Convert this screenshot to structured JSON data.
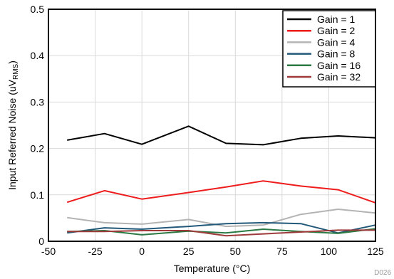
{
  "chart_data": {
    "type": "line",
    "xlabel": "Temperature (°C)",
    "ylabel_main": "Input Referred Noise (uV",
    "ylabel_sub": "RMS",
    "ylabel_close": ")",
    "xlim": [
      -50,
      125
    ],
    "ylim": [
      0,
      0.5
    ],
    "x_ticks": [
      -50,
      -25,
      0,
      25,
      50,
      75,
      100,
      125
    ],
    "y_ticks": [
      0,
      0.1,
      0.2,
      0.3,
      0.4,
      0.5
    ],
    "x_tick_labels": [
      "-50",
      "-25",
      "0",
      "25",
      "50",
      "75",
      "100",
      "125"
    ],
    "y_tick_labels": [
      "0",
      "0.1",
      "0.2",
      "0.3",
      "0.4",
      "0.5"
    ],
    "grid": true,
    "legend_placement": "top-right",
    "x": [
      -40,
      -20,
      0,
      25,
      45,
      65,
      85,
      105,
      125
    ],
    "series": [
      {
        "name": "Gain = 1",
        "color": "#000000",
        "values": [
          0.218,
          0.232,
          0.209,
          0.248,
          0.211,
          0.208,
          0.222,
          0.227,
          0.223
        ]
      },
      {
        "name": "Gain = 2",
        "color": "#ee1c1c",
        "values": [
          0.084,
          0.109,
          0.091,
          0.105,
          0.117,
          0.13,
          0.119,
          0.111,
          0.083
        ]
      },
      {
        "name": "Gain = 4",
        "color": "#b4b4b4",
        "values": [
          0.051,
          0.04,
          0.037,
          0.047,
          0.032,
          0.035,
          0.058,
          0.069,
          0.061
        ]
      },
      {
        "name": "Gain = 8",
        "color": "#22597a",
        "values": [
          0.018,
          0.029,
          0.026,
          0.032,
          0.038,
          0.04,
          0.038,
          0.018,
          0.035
        ]
      },
      {
        "name": "Gain = 16",
        "color": "#2c7a43",
        "values": [
          0.021,
          0.023,
          0.014,
          0.022,
          0.018,
          0.026,
          0.021,
          0.017,
          0.027
        ]
      },
      {
        "name": "Gain = 32",
        "color": "#9e3a3a",
        "values": [
          0.021,
          0.021,
          0.023,
          0.023,
          0.012,
          0.016,
          0.02,
          0.024,
          0.024
        ]
      }
    ],
    "code_label": "D026"
  }
}
